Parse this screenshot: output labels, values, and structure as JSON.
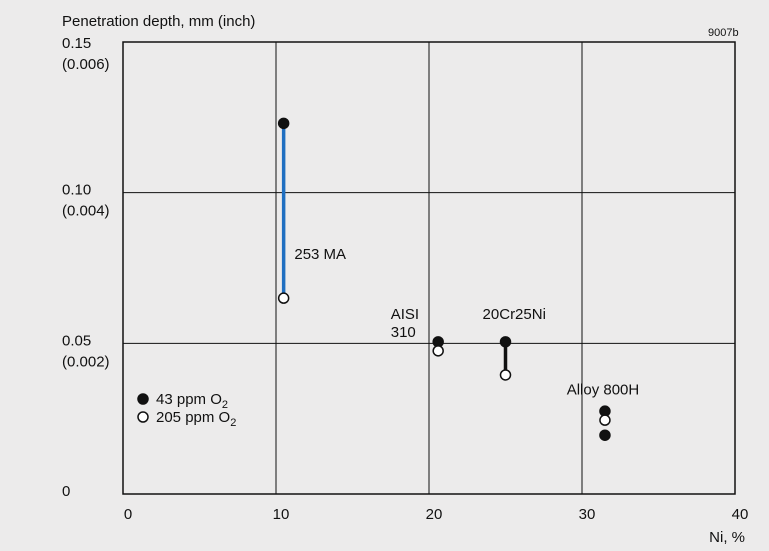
{
  "figure_code": "9007b",
  "chart_data": {
    "type": "scatter",
    "ylabel": "Penetration depth, mm (inch)",
    "xlabel": "Ni, %",
    "xlim": [
      0,
      40
    ],
    "ylim": [
      0,
      0.15
    ],
    "grid": true,
    "x_ticks": [
      {
        "value": 0,
        "label": "0"
      },
      {
        "value": 10,
        "label": "10"
      },
      {
        "value": 20,
        "label": "20"
      },
      {
        "value": 30,
        "label": "30"
      },
      {
        "value": 40,
        "label": "40"
      }
    ],
    "y_ticks": [
      {
        "value": 0,
        "line1": "0",
        "line2": ""
      },
      {
        "value": 0.05,
        "line1": "0.05",
        "line2": "(0.002)"
      },
      {
        "value": 0.1,
        "line1": "0.10",
        "line2": "(0.004)"
      },
      {
        "value": 0.15,
        "line1": "0.15",
        "line2": "(0.006)"
      }
    ],
    "legend": {
      "position": "bottom-left",
      "entries": [
        {
          "marker": "filled",
          "text": "43 ppm O",
          "sub": "2"
        },
        {
          "marker": "open",
          "text": "205 ppm O",
          "sub": "2"
        }
      ]
    },
    "series": [
      {
        "name": "43 ppm O2",
        "marker": "filled",
        "color": "#111111",
        "points": [
          {
            "x": 10.5,
            "y": 0.123
          },
          {
            "x": 20.6,
            "y": 0.0505
          },
          {
            "x": 25.0,
            "y": 0.0505
          },
          {
            "x": 31.5,
            "y": 0.0275
          },
          {
            "x": 31.5,
            "y": 0.0195
          }
        ]
      },
      {
        "name": "205 ppm O2",
        "marker": "open",
        "color": "#111111",
        "points": [
          {
            "x": 10.5,
            "y": 0.065
          },
          {
            "x": 20.6,
            "y": 0.0475
          },
          {
            "x": 25.0,
            "y": 0.0395
          },
          {
            "x": 31.5,
            "y": 0.0245
          }
        ]
      }
    ],
    "ranges": [
      {
        "x": 10.5,
        "y1": 0.123,
        "y2": 0.065,
        "color": "#1f6fc1"
      },
      {
        "x": 25.0,
        "y1": 0.0505,
        "y2": 0.0395,
        "color": "#111111"
      }
    ],
    "annotations": [
      {
        "lines": [
          "253 MA"
        ],
        "x": 11.2,
        "y": 0.078
      },
      {
        "lines": [
          "AISI",
          "310"
        ],
        "x": 17.5,
        "y": 0.058
      },
      {
        "lines": [
          "20Cr25Ni"
        ],
        "x": 23.5,
        "y": 0.058
      },
      {
        "lines": [
          "Alloy 800H"
        ],
        "x": 29.0,
        "y": 0.033
      }
    ]
  }
}
